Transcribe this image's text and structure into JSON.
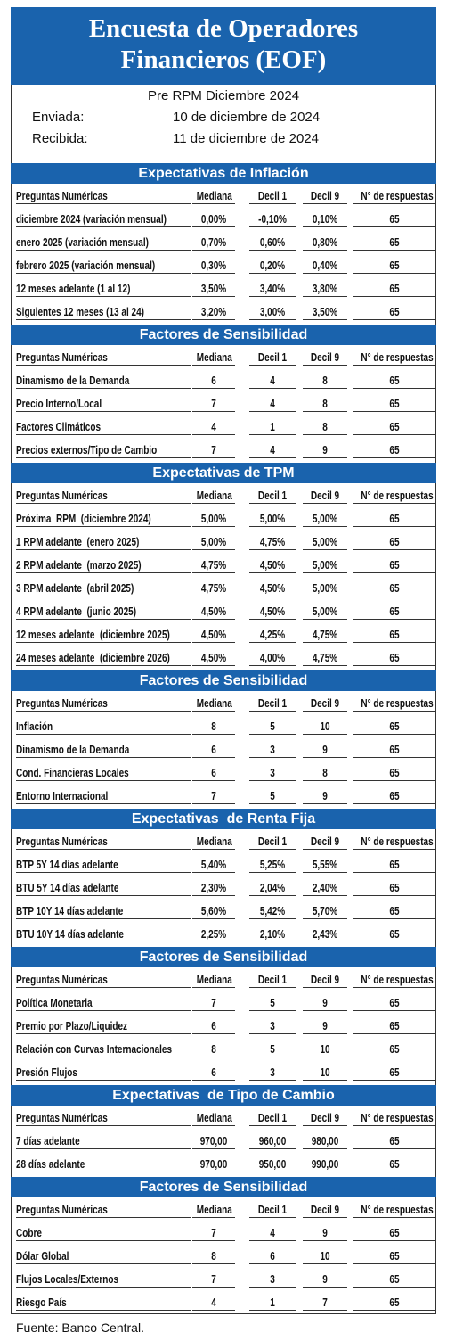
{
  "header": {
    "title_line1": "Encuesta de Operadores",
    "title_line2": "Financieros (EOF)"
  },
  "info": {
    "subtitle": "Pre RPM Diciembre 2024",
    "sent_label": "Enviada:",
    "sent_date": "10 de diciembre de 2024",
    "received_label": "Recibida:",
    "received_date": "11 de diciembre de 2024"
  },
  "sections": [
    {
      "title": "Expectativas de Inflación",
      "columns": [
        "Preguntas Numéricas",
        "Mediana",
        "Decil 1",
        "Decil 9",
        "N° de respuestas"
      ],
      "rows": [
        [
          "diciembre 2024 (variación mensual)",
          "0,00%",
          "-0,10%",
          "0,10%",
          "65"
        ],
        [
          "enero 2025 (variación mensual)",
          "0,70%",
          "0,60%",
          "0,80%",
          "65"
        ],
        [
          "febrero 2025 (variación mensual)",
          "0,30%",
          "0,20%",
          "0,40%",
          "65"
        ],
        [
          "12 meses adelante (1 al 12)",
          "3,50%",
          "3,40%",
          "3,80%",
          "65"
        ],
        [
          "Siguientes 12 meses (13 al 24)",
          "3,20%",
          "3,00%",
          "3,50%",
          "65"
        ]
      ]
    },
    {
      "title": "Factores de Sensibilidad",
      "columns": [
        "Preguntas Numéricas",
        "Mediana",
        "Decil 1",
        "Decil 9",
        "N° de respuestas"
      ],
      "rows": [
        [
          "Dinamismo de la Demanda",
          "6",
          "4",
          "8",
          "65"
        ],
        [
          "Precio Interno/Local",
          "7",
          "4",
          "8",
          "65"
        ],
        [
          "Factores Climáticos",
          "4",
          "1",
          "8",
          "65"
        ],
        [
          "Precios externos/Tipo de Cambio",
          "7",
          "4",
          "9",
          "65"
        ]
      ]
    },
    {
      "title": "Expectativas de TPM",
      "columns": [
        "Preguntas Numéricas",
        "Mediana",
        "Decil 1",
        "Decil 9",
        "N° de respuestas"
      ],
      "rows": [
        [
          "Próxima  RPM  (diciembre 2024)",
          "5,00%",
          "5,00%",
          "5,00%",
          "65"
        ],
        [
          "1 RPM adelante  (enero 2025)",
          "5,00%",
          "4,75%",
          "5,00%",
          "65"
        ],
        [
          "2 RPM adelante  (marzo 2025)",
          "4,75%",
          "4,50%",
          "5,00%",
          "65"
        ],
        [
          "3 RPM adelante  (abril 2025)",
          "4,75%",
          "4,50%",
          "5,00%",
          "65"
        ],
        [
          "4 RPM adelante  (junio 2025)",
          "4,50%",
          "4,50%",
          "5,00%",
          "65"
        ],
        [
          "12 meses adelante  (diciembre 2025)",
          "4,50%",
          "4,25%",
          "4,75%",
          "65"
        ],
        [
          "24 meses adelante  (diciembre 2026)",
          "4,50%",
          "4,00%",
          "4,75%",
          "65"
        ]
      ]
    },
    {
      "title": "Factores de Sensibilidad",
      "columns": [
        "Preguntas Numéricas",
        "Mediana",
        "Decil 1",
        "Decil 9",
        "N° de respuestas"
      ],
      "rows": [
        [
          "Inflación",
          "8",
          "5",
          "10",
          "65"
        ],
        [
          "Dinamismo de la Demanda",
          "6",
          "3",
          "9",
          "65"
        ],
        [
          "Cond. Financieras Locales",
          "6",
          "3",
          "8",
          "65"
        ],
        [
          "Entorno Internacional",
          "7",
          "5",
          "9",
          "65"
        ]
      ]
    },
    {
      "title": "Expectativas  de Renta Fija",
      "columns": [
        "Preguntas Numéricas",
        "Mediana",
        "Decil 1",
        "Decil 9",
        "N° de respuestas"
      ],
      "rows": [
        [
          "BTP 5Y 14 días adelante",
          "5,40%",
          "5,25%",
          "5,55%",
          "65"
        ],
        [
          "BTU 5Y 14 días adelante",
          "2,30%",
          "2,04%",
          "2,40%",
          "65"
        ],
        [
          "BTP 10Y 14 días adelante",
          "5,60%",
          "5,42%",
          "5,70%",
          "65"
        ],
        [
          "BTU 10Y 14 días adelante",
          "2,25%",
          "2,10%",
          "2,43%",
          "65"
        ]
      ]
    },
    {
      "title": "Factores de Sensibilidad",
      "columns": [
        "Preguntas Numéricas",
        "Mediana",
        "Decil 1",
        "Decil 9",
        "N° de respuestas"
      ],
      "rows": [
        [
          "Política Monetaria",
          "7",
          "5",
          "9",
          "65"
        ],
        [
          "Premio por Plazo/Liquidez",
          "6",
          "3",
          "9",
          "65"
        ],
        [
          "Relación con Curvas Internacionales",
          "8",
          "5",
          "10",
          "65"
        ],
        [
          "Presión Flujos",
          "6",
          "3",
          "10",
          "65"
        ]
      ]
    },
    {
      "title": "Expectativas  de Tipo de Cambio",
      "columns": [
        "Preguntas Numéricas",
        "Mediana",
        "Decil 1",
        "Decil 9",
        "N° de respuestas"
      ],
      "rows": [
        [
          "7 días adelante",
          "970,00",
          "960,00",
          "980,00",
          "65"
        ],
        [
          "28 días adelante",
          "970,00",
          "950,00",
          "990,00",
          "65"
        ]
      ]
    },
    {
      "title": "Factores de Sensibilidad",
      "columns": [
        "Preguntas Numéricas",
        "Mediana",
        "Decil 1",
        "Decil 9",
        "N° de respuestas"
      ],
      "rows": [
        [
          "Cobre",
          "7",
          "4",
          "9",
          "65"
        ],
        [
          "Dólar Global",
          "8",
          "6",
          "10",
          "65"
        ],
        [
          "Flujos Locales/Externos",
          "7",
          "3",
          "9",
          "65"
        ],
        [
          "Riesgo País",
          "4",
          "1",
          "7",
          "65"
        ]
      ]
    }
  ],
  "footer": "Fuente: Banco Central."
}
